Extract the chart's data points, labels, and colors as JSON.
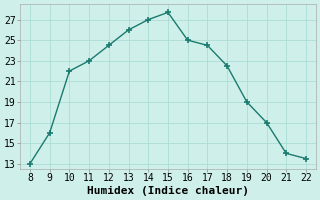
{
  "x": [
    8,
    9,
    10,
    11,
    12,
    13,
    14,
    15,
    16,
    17,
    18,
    19,
    20,
    21,
    22
  ],
  "y": [
    13,
    16,
    22,
    23,
    24.5,
    26,
    27,
    27.7,
    25,
    24.5,
    22.5,
    19,
    17,
    14,
    13.5
  ],
  "line_color": "#1a7a6e",
  "marker": "+",
  "marker_size": 4,
  "marker_linewidth": 1.2,
  "background_color": "#cff0ea",
  "grid_color": "#aaddd5",
  "xlabel": "Humidex (Indice chaleur)",
  "xlabel_fontsize": 8,
  "xlabel_fontweight": "bold",
  "ylim": [
    12.5,
    28.5
  ],
  "xlim": [
    7.5,
    22.5
  ],
  "yticks": [
    13,
    15,
    17,
    19,
    21,
    23,
    25,
    27
  ],
  "xticks": [
    8,
    9,
    10,
    11,
    12,
    13,
    14,
    15,
    16,
    17,
    18,
    19,
    20,
    21,
    22
  ],
  "tick_fontsize": 7,
  "line_width": 1.0
}
